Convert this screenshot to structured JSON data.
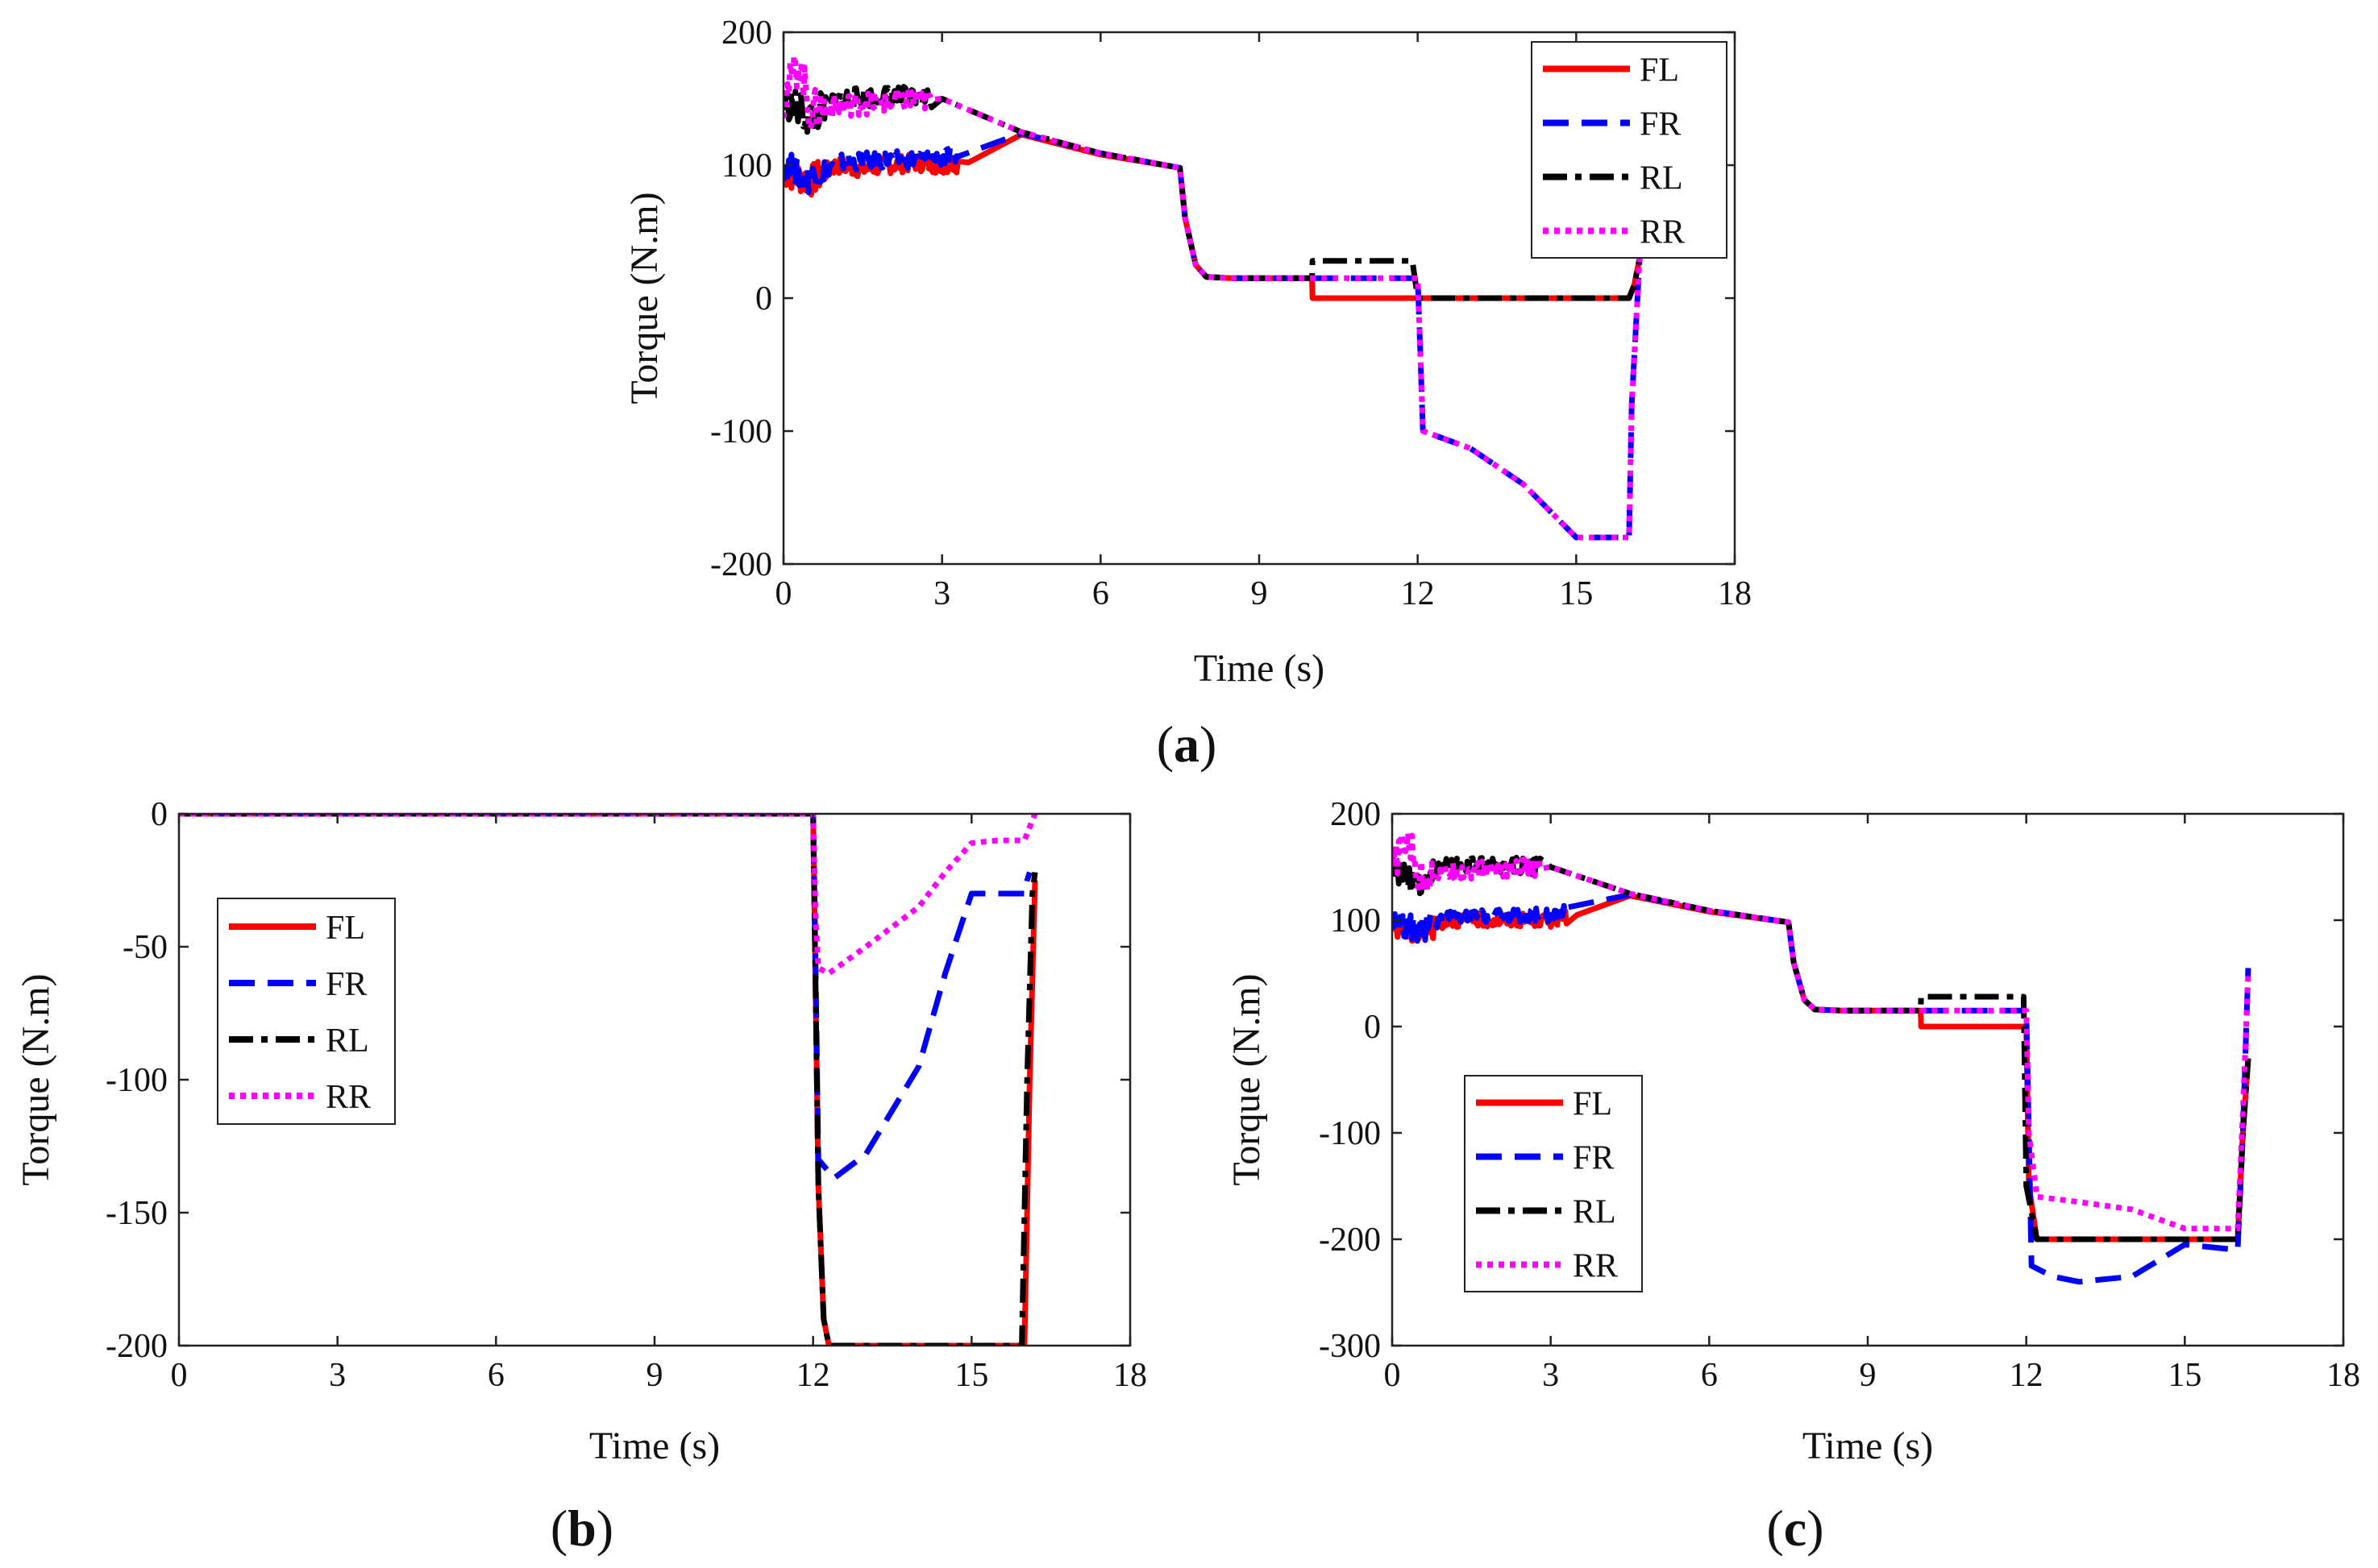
{
  "figure": {
    "panel_labels": [
      {
        "open": "(",
        "letter": "a",
        "close": ")"
      },
      {
        "open": "(",
        "letter": "b",
        "close": ")"
      },
      {
        "open": "(",
        "letter": "c",
        "close": ")"
      }
    ]
  },
  "legend_colors": {
    "FL": "#ff0000",
    "FR": "#0000ff",
    "RL": "#000000",
    "RR": "#ff00ff"
  },
  "chart_data": [
    {
      "type": "line",
      "title": "",
      "panel": "a",
      "xlabel": "Time (s)",
      "ylabel": "Torque (N.m)",
      "xlim": [
        0,
        18
      ],
      "ylim": [
        -200,
        200
      ],
      "xticks": [
        "0",
        "3",
        "6",
        "9",
        "12",
        "15",
        "18"
      ],
      "yticks": [
        "-200",
        "-100",
        "0",
        "100",
        "200"
      ],
      "legend_position": "top-right",
      "series": [
        {
          "name": "FL",
          "style": "solid",
          "x": [
            0,
            0.5,
            1,
            1.5,
            2,
            2.5,
            3,
            3.5,
            4.5,
            6,
            7.5,
            7.6,
            7.8,
            8,
            8.5,
            10,
            10.01,
            12,
            16,
            16.1,
            16.2
          ],
          "y": [
            95,
            88,
            100,
            97,
            100,
            102,
            100,
            102,
            123,
            108,
            98,
            60,
            25,
            16,
            15,
            15,
            0,
            0,
            0,
            10,
            30
          ],
          "noise_until": 3.3,
          "noise_amp": 12
        },
        {
          "name": "FR",
          "style": "dashed",
          "x": [
            0,
            0.5,
            1,
            2,
            3,
            3.3,
            4.5,
            6,
            7.5,
            7.6,
            7.8,
            8,
            8.5,
            12,
            12.05,
            12.1,
            13,
            14,
            15,
            16,
            16.05,
            16.2
          ],
          "y": [
            100,
            90,
            102,
            104,
            105,
            108,
            124,
            109,
            98,
            60,
            25,
            16,
            15,
            15,
            -40,
            -100,
            -113,
            -140,
            -180,
            -180,
            -80,
            30
          ],
          "noise_until": 3.3,
          "noise_amp": 12
        },
        {
          "name": "RL",
          "style": "dashdot",
          "x": [
            0,
            0.5,
            1,
            2,
            3,
            4.5,
            6,
            7.5,
            7.6,
            7.8,
            8,
            8.5,
            10,
            10.01,
            11.9,
            12,
            16,
            16.1,
            16.2
          ],
          "y": [
            150,
            135,
            150,
            152,
            150,
            125,
            109,
            98,
            60,
            25,
            16,
            15,
            15,
            28,
            28,
            0,
            0,
            10,
            30
          ],
          "noise_until": 2.8,
          "noise_amp": 14
        },
        {
          "name": "RR",
          "style": "dotted",
          "x": [
            0,
            0.3,
            0.5,
            1,
            2,
            3,
            4.5,
            6,
            7.5,
            7.6,
            7.8,
            8,
            8.5,
            10,
            12,
            12.05,
            12.1,
            13,
            14,
            15,
            16,
            16.05,
            16.2
          ],
          "y": [
            150,
            178,
            140,
            145,
            148,
            150,
            125,
            109,
            98,
            60,
            25,
            16,
            15,
            15,
            15,
            -40,
            -100,
            -113,
            -140,
            -180,
            -180,
            -80,
            30
          ],
          "noise_until": 2.8,
          "noise_amp": 16
        }
      ]
    },
    {
      "type": "line",
      "title": "",
      "panel": "b",
      "xlabel": "Time (s)",
      "ylabel": "Torque (N.m)",
      "xlim": [
        0,
        18
      ],
      "ylim": [
        -200,
        0
      ],
      "xticks": [
        "0",
        "3",
        "6",
        "9",
        "12",
        "15",
        "18"
      ],
      "yticks": [
        "-200",
        "-150",
        "-100",
        "-50",
        "0"
      ],
      "legend_position": "left",
      "series": [
        {
          "name": "FL",
          "style": "solid",
          "x": [
            0,
            12,
            12.1,
            12.2,
            12.3,
            15,
            16,
            16.1,
            16.2
          ],
          "y": [
            0,
            0,
            -140,
            -190,
            -200,
            -200,
            -200,
            -100,
            -25
          ]
        },
        {
          "name": "FR",
          "style": "dashed",
          "x": [
            0,
            12,
            12.05,
            12.1,
            12.4,
            13,
            14,
            14.5,
            15,
            15.5,
            16,
            16.05,
            16.1
          ],
          "y": [
            0,
            0,
            -60,
            -130,
            -137,
            -128,
            -95,
            -60,
            -30,
            -30,
            -30,
            -25,
            -22
          ]
        },
        {
          "name": "RL",
          "style": "dashdot",
          "x": [
            0,
            12,
            12.1,
            12.2,
            12.3,
            15,
            15.95,
            16.05,
            16.15,
            16.2
          ],
          "y": [
            0,
            0,
            -140,
            -190,
            -200,
            -200,
            -200,
            -100,
            -30,
            -22
          ]
        },
        {
          "name": "RR",
          "style": "dotted",
          "x": [
            0,
            12,
            12.05,
            12.1,
            12.3,
            13,
            14,
            14.5,
            15,
            15.5,
            16,
            16.1,
            16.2
          ],
          "y": [
            0,
            0,
            -40,
            -58,
            -60,
            -50,
            -35,
            -22,
            -11,
            -10,
            -10,
            -5,
            0
          ]
        }
      ]
    },
    {
      "type": "line",
      "title": "",
      "panel": "c",
      "xlabel": "Time (s)",
      "ylabel": "Torque (N.m)",
      "xlim": [
        0,
        18
      ],
      "ylim": [
        -300,
        200
      ],
      "xticks": [
        "0",
        "3",
        "6",
        "9",
        "12",
        "15",
        "18"
      ],
      "yticks": [
        "-300",
        "-200",
        "-100",
        "0",
        "100",
        "200"
      ],
      "legend_position": "bottom-left",
      "series": [
        {
          "name": "FL",
          "style": "solid",
          "x": [
            0,
            0.5,
            1,
            2,
            3,
            3.5,
            4.5,
            6,
            7.5,
            7.6,
            7.8,
            8,
            8.5,
            10,
            10.01,
            12,
            12.05,
            12.2,
            15.5,
            16,
            16.1,
            16.2
          ],
          "y": [
            95,
            88,
            100,
            100,
            100,
            105,
            123,
            108,
            98,
            60,
            25,
            16,
            15,
            15,
            0,
            0,
            -150,
            -200,
            -200,
            -200,
            -100,
            -30
          ],
          "noise_until": 3.3,
          "noise_amp": 12
        },
        {
          "name": "FR",
          "style": "dashed",
          "x": [
            0,
            0.5,
            1,
            2,
            3,
            3.3,
            4.5,
            6,
            7.5,
            7.6,
            7.8,
            8,
            8.5,
            12,
            12.05,
            12.1,
            12.5,
            13,
            14,
            14.5,
            15,
            16,
            16.1,
            16.2
          ],
          "y": [
            100,
            90,
            102,
            104,
            105,
            108,
            124,
            109,
            98,
            60,
            25,
            16,
            15,
            15,
            -100,
            -225,
            -235,
            -240,
            -235,
            -220,
            -205,
            -210,
            -100,
            55
          ],
          "noise_until": 3.3,
          "noise_amp": 12
        },
        {
          "name": "RL",
          "style": "dashdot",
          "x": [
            0,
            0.5,
            1,
            2,
            3,
            4.5,
            6,
            7.5,
            7.6,
            7.8,
            8,
            8.5,
            10,
            10.01,
            11.95,
            12,
            12.2,
            15.5,
            16,
            16.1,
            16.2
          ],
          "y": [
            150,
            135,
            150,
            152,
            150,
            125,
            109,
            98,
            60,
            25,
            16,
            15,
            15,
            28,
            28,
            -150,
            -200,
            -200,
            -200,
            -100,
            -30
          ],
          "noise_until": 2.8,
          "noise_amp": 14
        },
        {
          "name": "RR",
          "style": "dotted",
          "x": [
            0,
            0.3,
            0.5,
            1,
            2,
            3,
            4.5,
            6,
            7.5,
            7.6,
            7.8,
            8,
            8.5,
            12,
            12.05,
            12.2,
            13,
            14,
            15,
            15.5,
            16,
            16.1,
            16.2
          ],
          "y": [
            150,
            178,
            140,
            145,
            148,
            150,
            125,
            109,
            98,
            60,
            25,
            16,
            15,
            15,
            -100,
            -160,
            -165,
            -172,
            -190,
            -190,
            -190,
            -80,
            50
          ],
          "noise_until": 2.8,
          "noise_amp": 16
        }
      ]
    }
  ]
}
